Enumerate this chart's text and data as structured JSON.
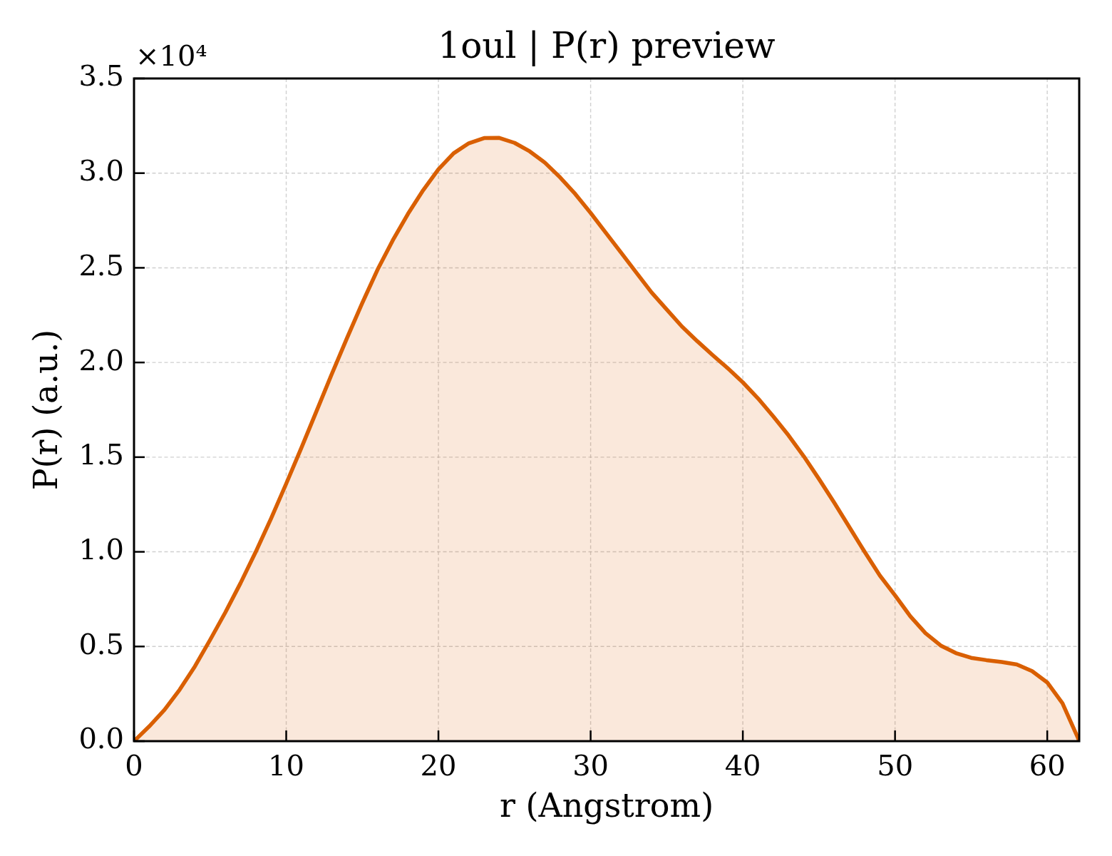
{
  "chart_data": {
    "type": "area",
    "title": "1oul | P(r) preview",
    "xlabel": "r (Angstrom)",
    "ylabel": "P(r) (a.u.)",
    "annotations": [
      "×10⁴"
    ],
    "x": [
      0,
      1,
      2,
      3,
      4,
      5,
      6,
      7,
      8,
      9,
      10,
      11,
      12,
      13,
      14,
      15,
      16,
      17,
      18,
      19,
      20,
      21,
      22,
      23,
      24,
      25,
      26,
      27,
      28,
      29,
      30,
      31,
      32,
      33,
      34,
      35,
      36,
      37,
      38,
      39,
      40,
      41,
      42,
      43,
      44,
      45,
      46,
      47,
      48,
      49,
      50,
      51,
      52,
      53,
      54,
      55,
      56,
      57,
      58,
      59,
      60,
      61,
      62,
      62.1
    ],
    "values": [
      0,
      0.078,
      0.165,
      0.272,
      0.395,
      0.535,
      0.68,
      0.835,
      1.0,
      1.175,
      1.36,
      1.55,
      1.745,
      1.94,
      2.13,
      2.315,
      2.49,
      2.645,
      2.785,
      2.91,
      3.02,
      3.105,
      3.158,
      3.185,
      3.186,
      3.16,
      3.115,
      3.055,
      2.977,
      2.889,
      2.79,
      2.685,
      2.58,
      2.475,
      2.37,
      2.28,
      2.19,
      2.113,
      2.04,
      1.97,
      1.895,
      1.81,
      1.715,
      1.615,
      1.505,
      1.385,
      1.26,
      1.13,
      1.0,
      0.875,
      0.77,
      0.66,
      0.57,
      0.505,
      0.465,
      0.44,
      0.428,
      0.418,
      0.405,
      0.37,
      0.31,
      0.2,
      0.02,
      0
    ],
    "color": "#d95f02",
    "xlim": [
      0,
      62.1
    ],
    "xticks": [
      0,
      10,
      20,
      30,
      40,
      50,
      60
    ],
    "ylim": [
      0,
      3.5
    ],
    "yticks": [
      {
        "value": 0,
        "label": "0.0"
      },
      0.5,
      {
        "value": 1,
        "label": "1.0"
      },
      1.5,
      {
        "value": 2,
        "label": "2.0"
      },
      2.5,
      {
        "value": 3,
        "label": "3.0"
      },
      3.5
    ],
    "grid": true
  }
}
